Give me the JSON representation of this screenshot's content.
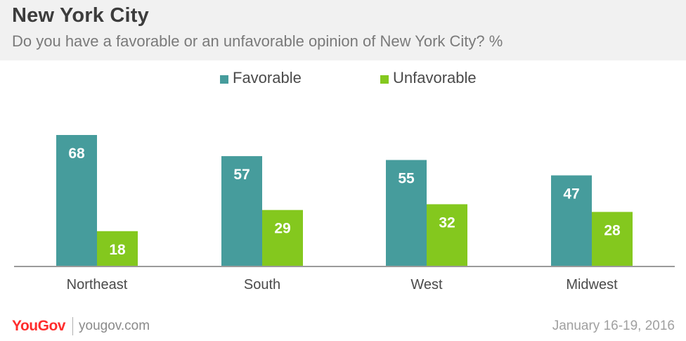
{
  "header": {
    "title": "New York City",
    "subtitle": "Do you have a favorable or an unfavorable opinion of New York City? %"
  },
  "footer": {
    "logo": "YouGov",
    "url": "yougov.com",
    "date": "January 16-19, 2016"
  },
  "colors": {
    "favorable": "#469c9c",
    "unfavorable": "#84c81e"
  },
  "chart_data": {
    "type": "bar",
    "title": "New York City",
    "subtitle": "Do you have a favorable or an unfavorable opinion of New York City? %",
    "categories": [
      "Northeast",
      "South",
      "West",
      "Midwest"
    ],
    "series": [
      {
        "name": "Favorable",
        "values": [
          68,
          57,
          55,
          47
        ]
      },
      {
        "name": "Unfavorable",
        "values": [
          18,
          29,
          32,
          28
        ]
      }
    ],
    "xlabel": "",
    "ylabel": "",
    "ylim": [
      0,
      68
    ],
    "grid": false,
    "legend": "top-center",
    "data_labels": true
  }
}
